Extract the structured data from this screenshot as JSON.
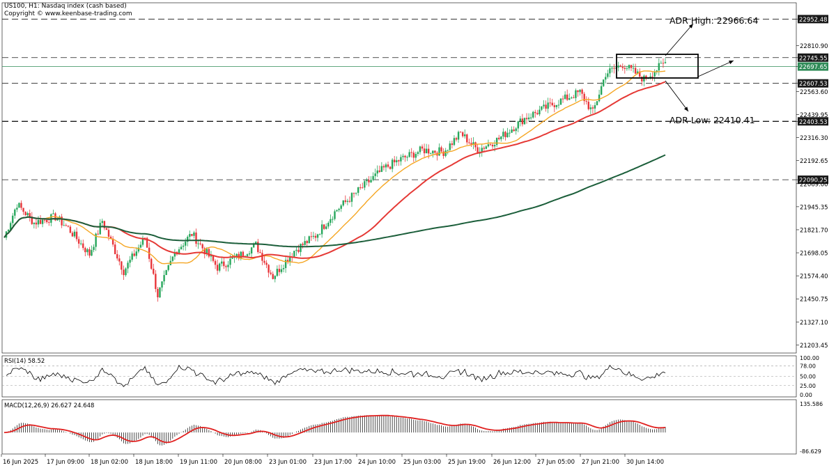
{
  "header": {
    "symbol_line": "US100, H1:  Nasdaq index (cash based)",
    "copyright": "Copyright © www.keenbase-trading.com"
  },
  "colors": {
    "bull": "#26a65b",
    "bear": "#e8353a",
    "ma20": "#f5a623",
    "ma50": "#e53935",
    "ma200": "#1b5e3a",
    "macd_signal": "#e0201f",
    "rsi_line": "#000000",
    "grid_dash": "#1a1a1a",
    "ref_line": "#2e8b57"
  },
  "chart_data": {
    "type": "candlestick",
    "symbol": "US100",
    "timeframe": "H1",
    "ylim": [
      21160,
      23040
    ],
    "y_ticks": [
      "22952.48",
      "22810.90",
      "22745.55",
      "22697.65",
      "22607.53",
      "22563.60",
      "22439.95",
      "22403.53",
      "22316.30",
      "22192.65",
      "22090.25",
      "22069.00",
      "21945.35",
      "21821.70",
      "21698.05",
      "21574.40",
      "21450.75",
      "21327.10",
      "21203.45"
    ],
    "x_ticks": [
      "16 Jun 2025",
      "17 Jun 09:00",
      "18 Jun 02:00",
      "18 Jun 18:00",
      "19 Jun 11:00",
      "20 Jun 08:00",
      "23 Jun 01:00",
      "23 Jun 17:00",
      "24 Jun 10:00",
      "25 Jun 03:00",
      "25 Jun 19:00",
      "26 Jun 12:00",
      "27 Jun 05:00",
      "27 Jun 21:00",
      "30 Jun 14:00"
    ],
    "price_anchors": [
      [
        0,
        21780
      ],
      [
        6,
        21960
      ],
      [
        14,
        21860
      ],
      [
        24,
        21890
      ],
      [
        30,
        21830
      ],
      [
        40,
        21690
      ],
      [
        46,
        21870
      ],
      [
        56,
        21600
      ],
      [
        66,
        21780
      ],
      [
        72,
        21470
      ],
      [
        80,
        21700
      ],
      [
        88,
        21800
      ],
      [
        100,
        21620
      ],
      [
        110,
        21680
      ],
      [
        118,
        21740
      ],
      [
        126,
        21570
      ],
      [
        136,
        21710
      ],
      [
        146,
        21790
      ],
      [
        156,
        21930
      ],
      [
        168,
        22050
      ],
      [
        178,
        22150
      ],
      [
        186,
        22200
      ],
      [
        196,
        22250
      ],
      [
        206,
        22240
      ],
      [
        214,
        22340
      ],
      [
        222,
        22250
      ],
      [
        232,
        22310
      ],
      [
        244,
        22420
      ],
      [
        258,
        22500
      ],
      [
        270,
        22560
      ],
      [
        276,
        22450
      ],
      [
        282,
        22660
      ],
      [
        290,
        22710
      ],
      [
        300,
        22630
      ],
      [
        310,
        22720
      ]
    ],
    "candle_count": 310,
    "moving_averages": [
      {
        "period": 20,
        "color": "#f5a623"
      },
      {
        "period": 50,
        "color": "#e53935"
      },
      {
        "period": 200,
        "color": "#1b5e3a"
      }
    ],
    "horizontal_levels": [
      22952.48,
      22745.55,
      22607.53,
      22403.53,
      22090.25
    ],
    "current_price": 22697.65,
    "annotations": [
      {
        "text": "ADR High: 22966.64",
        "value": 22966.64
      },
      {
        "text": "ADR Low: 22410.41",
        "value": 22410.41
      }
    ],
    "rsi": {
      "label": "RSI(14) 58.52",
      "period": 14,
      "last": 58.52,
      "ticks": [
        "100.00",
        "78.00",
        "50.00",
        "25.00",
        "0.00"
      ]
    },
    "macd": {
      "label": "MACD(12,26,9) 26.627 24.648",
      "params": [
        12,
        26,
        9
      ],
      "main": 26.627,
      "signal": 24.648,
      "ticks": [
        "135.586",
        "-86.629"
      ],
      "range": [
        -86.629,
        135.586
      ]
    }
  }
}
